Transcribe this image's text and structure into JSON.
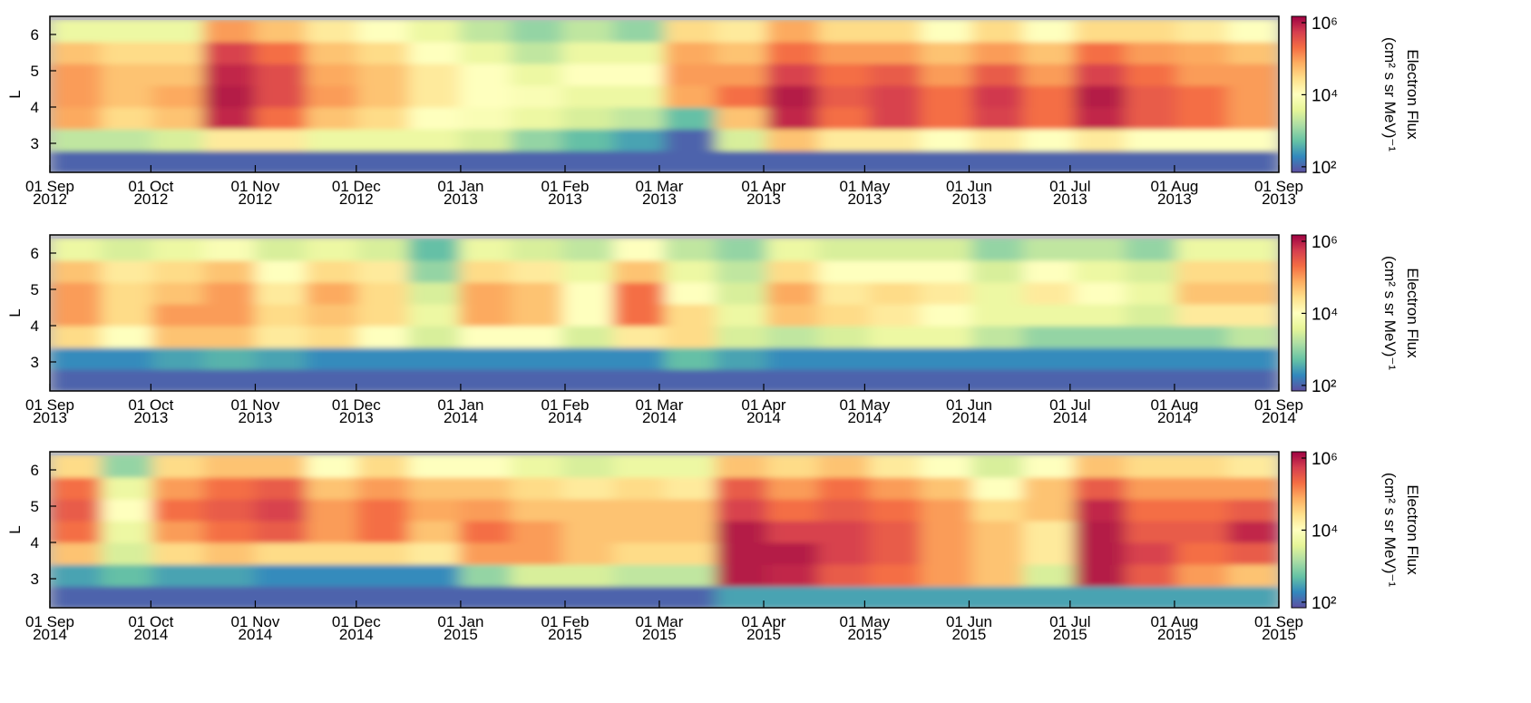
{
  "chart_data": [
    {
      "type": "heatmap",
      "ylabel": "L",
      "ylim": [
        2.2,
        6.5
      ],
      "yticks": [
        3,
        4,
        5,
        6
      ],
      "y_edges": [
        2.2,
        2.8,
        3.4,
        4.0,
        4.6,
        5.2,
        5.8,
        6.4
      ],
      "xlim": [
        "2012-09-01",
        "2013-09-01"
      ],
      "xticks": [
        {
          "value": "2012-09-01",
          "label": [
            "01 Sep",
            "2012"
          ]
        },
        {
          "value": "2012-10-01",
          "label": [
            "01 Oct",
            "2012"
          ]
        },
        {
          "value": "2012-11-01",
          "label": [
            "01 Nov",
            "2012"
          ]
        },
        {
          "value": "2012-12-01",
          "label": [
            "01 Dec",
            "2012"
          ]
        },
        {
          "value": "2013-01-01",
          "label": [
            "01 Jan",
            "2013"
          ]
        },
        {
          "value": "2013-02-01",
          "label": [
            "01 Feb",
            "2013"
          ]
        },
        {
          "value": "2013-03-01",
          "label": [
            "01 Mar",
            "2013"
          ]
        },
        {
          "value": "2013-04-01",
          "label": [
            "01 Apr",
            "2013"
          ]
        },
        {
          "value": "2013-05-01",
          "label": [
            "01 May",
            "2013"
          ]
        },
        {
          "value": "2013-06-01",
          "label": [
            "01 Jun",
            "2013"
          ]
        },
        {
          "value": "2013-07-01",
          "label": [
            "01 Jul",
            "2013"
          ]
        },
        {
          "value": "2013-08-01",
          "label": [
            "01 Aug",
            "2013"
          ]
        },
        {
          "value": "2013-09-01",
          "label": [
            "01 Sep",
            "2013"
          ]
        }
      ],
      "values": [
        [
          100.0,
          100.0,
          100.0,
          100.0,
          100.0,
          100.0,
          100.0,
          100.0,
          100.0,
          100.0,
          100.0,
          100.0,
          100.0,
          100.0,
          100.0,
          100.0,
          100.0,
          100.0,
          100.0,
          100.0,
          100.0,
          100.0,
          100.0,
          100.0
        ],
        [
          2000.0,
          2000.0,
          3000.0,
          20000.0,
          20000.0,
          5000.0,
          5000.0,
          5000.0,
          3000.0,
          1000.0,
          500.0,
          300.0,
          100.0,
          3000.0,
          50000.0,
          20000.0,
          20000.0,
          10000.0,
          20000.0,
          10000.0,
          20000.0,
          10000.0,
          10000.0,
          10000.0
        ],
        [
          80000.0,
          30000.0,
          50000.0,
          800000.0,
          200000.0,
          50000.0,
          30000.0,
          10000.0,
          8000.0,
          5000.0,
          3000.0,
          2000.0,
          500.0,
          50000.0,
          800000.0,
          200000.0,
          500000.0,
          200000.0,
          500000.0,
          200000.0,
          800000.0,
          300000.0,
          200000.0,
          100000.0
        ],
        [
          100000.0,
          50000.0,
          80000.0,
          1000000.0,
          400000.0,
          100000.0,
          50000.0,
          20000.0,
          10000.0,
          8000.0,
          5000.0,
          5000.0,
          80000.0,
          200000.0,
          1000000.0,
          300000.0,
          500000.0,
          200000.0,
          600000.0,
          200000.0,
          1000000.0,
          300000.0,
          200000.0,
          100000.0
        ],
        [
          100000.0,
          50000.0,
          50000.0,
          800000.0,
          400000.0,
          80000.0,
          50000.0,
          20000.0,
          10000.0,
          5000.0,
          10000.0,
          10000.0,
          100000.0,
          100000.0,
          500000.0,
          200000.0,
          300000.0,
          100000.0,
          300000.0,
          100000.0,
          500000.0,
          200000.0,
          100000.0,
          100000.0
        ],
        [
          50000.0,
          30000.0,
          30000.0,
          500000.0,
          200000.0,
          50000.0,
          30000.0,
          10000.0,
          5000.0,
          2000.0,
          5000.0,
          5000.0,
          80000.0,
          50000.0,
          200000.0,
          100000.0,
          100000.0,
          50000.0,
          100000.0,
          50000.0,
          200000.0,
          100000.0,
          80000.0,
          50000.0
        ],
        [
          5000.0,
          5000.0,
          5000.0,
          100000.0,
          50000.0,
          20000.0,
          10000.0,
          5000.0,
          2000.0,
          1000.0,
          2000.0,
          1000.0,
          30000.0,
          20000.0,
          80000.0,
          30000.0,
          30000.0,
          10000.0,
          30000.0,
          10000.0,
          30000.0,
          30000.0,
          20000.0,
          10000.0
        ]
      ],
      "colorbar": {
        "label": [
          "Electron Flux",
          "(cm² s sr MeV)⁻¹"
        ],
        "lim": [
          70,
          1500000
        ],
        "ticks": [
          {
            "value": 100,
            "label": "10²"
          },
          {
            "value": 10000,
            "label": "10⁴"
          },
          {
            "value": 1000000,
            "label": "10⁶"
          }
        ]
      },
      "colormap": [
        "#5e4fa2",
        "#3288bd",
        "#66c2a5",
        "#abdda4",
        "#e6f598",
        "#ffffbf",
        "#fee08b",
        "#fdae61",
        "#f46d43",
        "#d53e4f",
        "#9e0142"
      ]
    },
    {
      "type": "heatmap",
      "ylabel": "L",
      "ylim": [
        2.2,
        6.5
      ],
      "yticks": [
        3,
        4,
        5,
        6
      ],
      "y_edges": [
        2.2,
        2.8,
        3.4,
        4.0,
        4.6,
        5.2,
        5.8,
        6.4
      ],
      "xlim": [
        "2013-09-01",
        "2014-09-01"
      ],
      "xticks": [
        {
          "value": "2013-09-01",
          "label": [
            "01 Sep",
            "2013"
          ]
        },
        {
          "value": "2013-10-01",
          "label": [
            "01 Oct",
            "2013"
          ]
        },
        {
          "value": "2013-11-01",
          "label": [
            "01 Nov",
            "2013"
          ]
        },
        {
          "value": "2013-12-01",
          "label": [
            "01 Dec",
            "2013"
          ]
        },
        {
          "value": "2014-01-01",
          "label": [
            "01 Jan",
            "2014"
          ]
        },
        {
          "value": "2014-02-01",
          "label": [
            "01 Feb",
            "2014"
          ]
        },
        {
          "value": "2014-03-01",
          "label": [
            "01 Mar",
            "2014"
          ]
        },
        {
          "value": "2014-04-01",
          "label": [
            "01 Apr",
            "2014"
          ]
        },
        {
          "value": "2014-05-01",
          "label": [
            "01 May",
            "2014"
          ]
        },
        {
          "value": "2014-06-01",
          "label": [
            "01 Jun",
            "2014"
          ]
        },
        {
          "value": "2014-07-01",
          "label": [
            "01 Jul",
            "2014"
          ]
        },
        {
          "value": "2014-08-01",
          "label": [
            "01 Aug",
            "2014"
          ]
        },
        {
          "value": "2014-09-01",
          "label": [
            "01 Sep",
            "2014"
          ]
        }
      ],
      "values": [
        [
          100.0,
          100.0,
          100.0,
          100.0,
          100.0,
          100.0,
          100.0,
          100.0,
          100.0,
          100.0,
          100.0,
          100.0,
          100.0,
          100.0,
          100.0,
          100.0,
          100.0,
          100.0,
          100.0,
          100.0,
          100.0,
          100.0,
          100.0,
          100.0
        ],
        [
          200.0,
          200.0,
          300.0,
          400.0,
          300.0,
          200.0,
          200.0,
          200.0,
          200.0,
          200.0,
          200.0,
          200.0,
          500.0,
          300.0,
          200.0,
          200.0,
          200.0,
          200.0,
          200.0,
          200.0,
          200.0,
          200.0,
          200.0,
          200.0
        ],
        [
          30000.0,
          10000.0,
          50000.0,
          50000.0,
          20000.0,
          30000.0,
          10000.0,
          3000.0,
          10000.0,
          10000.0,
          3000.0,
          20000.0,
          30000.0,
          3000.0,
          2000.0,
          3000.0,
          5000.0,
          5000.0,
          2000.0,
          1000.0,
          1000.0,
          1000.0,
          1000.0,
          2000.0
        ],
        [
          100000.0,
          30000.0,
          100000.0,
          100000.0,
          30000.0,
          50000.0,
          30000.0,
          5000.0,
          80000.0,
          50000.0,
          10000.0,
          200000.0,
          30000.0,
          5000.0,
          50000.0,
          30000.0,
          20000.0,
          10000.0,
          5000.0,
          5000.0,
          5000.0,
          3000.0,
          20000.0,
          20000.0
        ],
        [
          100000.0,
          30000.0,
          50000.0,
          100000.0,
          20000.0,
          80000.0,
          30000.0,
          3000.0,
          80000.0,
          50000.0,
          10000.0,
          200000.0,
          10000.0,
          3000.0,
          80000.0,
          20000.0,
          30000.0,
          20000.0,
          5000.0,
          20000.0,
          10000.0,
          5000.0,
          50000.0,
          50000.0
        ],
        [
          50000.0,
          20000.0,
          30000.0,
          50000.0,
          10000.0,
          30000.0,
          20000.0,
          1000.0,
          30000.0,
          20000.0,
          5000.0,
          50000.0,
          5000.0,
          2000.0,
          30000.0,
          10000.0,
          10000.0,
          10000.0,
          3000.0,
          10000.0,
          5000.0,
          3000.0,
          30000.0,
          30000.0
        ],
        [
          5000.0,
          3000.0,
          5000.0,
          8000.0,
          3000.0,
          5000.0,
          3000.0,
          500.0,
          5000.0,
          3000.0,
          2000.0,
          10000.0,
          2000.0,
          1000.0,
          5000.0,
          3000.0,
          3000.0,
          3000.0,
          1000.0,
          2000.0,
          2000.0,
          1000.0,
          5000.0,
          5000.0
        ]
      ],
      "colorbar": {
        "label": [
          "Electron Flux",
          "(cm² s sr MeV)⁻¹"
        ],
        "lim": [
          70,
          1500000
        ],
        "ticks": [
          {
            "value": 100,
            "label": "10²"
          },
          {
            "value": 10000,
            "label": "10⁴"
          },
          {
            "value": 1000000,
            "label": "10⁶"
          }
        ]
      },
      "colormap": [
        "#5e4fa2",
        "#3288bd",
        "#66c2a5",
        "#abdda4",
        "#e6f598",
        "#ffffbf",
        "#fee08b",
        "#fdae61",
        "#f46d43",
        "#d53e4f",
        "#9e0142"
      ]
    },
    {
      "type": "heatmap",
      "ylabel": "L",
      "ylim": [
        2.2,
        6.5
      ],
      "yticks": [
        3,
        4,
        5,
        6
      ],
      "y_edges": [
        2.2,
        2.8,
        3.4,
        4.0,
        4.6,
        5.2,
        5.8,
        6.4
      ],
      "xlim": [
        "2014-09-01",
        "2015-09-01"
      ],
      "xticks": [
        {
          "value": "2014-09-01",
          "label": [
            "01 Sep",
            "2014"
          ]
        },
        {
          "value": "2014-10-01",
          "label": [
            "01 Oct",
            "2014"
          ]
        },
        {
          "value": "2014-11-01",
          "label": [
            "01 Nov",
            "2014"
          ]
        },
        {
          "value": "2014-12-01",
          "label": [
            "01 Dec",
            "2014"
          ]
        },
        {
          "value": "2015-01-01",
          "label": [
            "01 Jan",
            "2015"
          ]
        },
        {
          "value": "2015-02-01",
          "label": [
            "01 Feb",
            "2015"
          ]
        },
        {
          "value": "2015-03-01",
          "label": [
            "01 Mar",
            "2015"
          ]
        },
        {
          "value": "2015-04-01",
          "label": [
            "01 Apr",
            "2015"
          ]
        },
        {
          "value": "2015-05-01",
          "label": [
            "01 May",
            "2015"
          ]
        },
        {
          "value": "2015-06-01",
          "label": [
            "01 Jun",
            "2015"
          ]
        },
        {
          "value": "2015-07-01",
          "label": [
            "01 Jul",
            "2015"
          ]
        },
        {
          "value": "2015-08-01",
          "label": [
            "01 Aug",
            "2015"
          ]
        },
        {
          "value": "2015-09-01",
          "label": [
            "01 Sep",
            "2015"
          ]
        }
      ],
      "values": [
        [
          100.0,
          100.0,
          100.0,
          100.0,
          100.0,
          100.0,
          100.0,
          100.0,
          100.0,
          100.0,
          100.0,
          100.0,
          100.0,
          300.0,
          300.0,
          300.0,
          300.0,
          300.0,
          300.0,
          300.0,
          300.0,
          300.0,
          300.0,
          300.0
        ],
        [
          300.0,
          500.0,
          300.0,
          300.0,
          200.0,
          200.0,
          200.0,
          200.0,
          1000.0,
          3000.0,
          3000.0,
          2000.0,
          2000.0,
          1000000.0,
          800000.0,
          300000.0,
          200000.0,
          100000.0,
          50000.0,
          3000.0,
          1000000.0,
          300000.0,
          100000.0,
          50000.0
        ],
        [
          50000.0,
          3000.0,
          30000.0,
          50000.0,
          30000.0,
          30000.0,
          30000.0,
          20000.0,
          100000.0,
          100000.0,
          50000.0,
          30000.0,
          30000.0,
          1000000.0,
          1000000.0,
          500000.0,
          300000.0,
          100000.0,
          50000.0,
          20000.0,
          1000000.0,
          500000.0,
          200000.0,
          300000.0
        ],
        [
          200000.0,
          5000.0,
          100000.0,
          200000.0,
          300000.0,
          100000.0,
          200000.0,
          50000.0,
          200000.0,
          100000.0,
          50000.0,
          50000.0,
          50000.0,
          1000000.0,
          500000.0,
          500000.0,
          300000.0,
          100000.0,
          50000.0,
          20000.0,
          1000000.0,
          300000.0,
          300000.0,
          800000.0
        ],
        [
          300000.0,
          10000.0,
          200000.0,
          300000.0,
          500000.0,
          100000.0,
          200000.0,
          80000.0,
          100000.0,
          50000.0,
          50000.0,
          50000.0,
          50000.0,
          500000.0,
          200000.0,
          300000.0,
          200000.0,
          100000.0,
          30000.0,
          50000.0,
          800000.0,
          200000.0,
          200000.0,
          300000.0
        ],
        [
          200000.0,
          5000.0,
          100000.0,
          200000.0,
          300000.0,
          50000.0,
          100000.0,
          50000.0,
          50000.0,
          30000.0,
          20000.0,
          30000.0,
          20000.0,
          300000.0,
          100000.0,
          200000.0,
          100000.0,
          50000.0,
          10000.0,
          50000.0,
          300000.0,
          100000.0,
          100000.0,
          100000.0
        ],
        [
          30000.0,
          1000.0,
          30000.0,
          50000.0,
          50000.0,
          10000.0,
          30000.0,
          10000.0,
          10000.0,
          5000.0,
          3000.0,
          5000.0,
          5000.0,
          50000.0,
          30000.0,
          50000.0,
          20000.0,
          10000.0,
          3000.0,
          10000.0,
          50000.0,
          30000.0,
          30000.0,
          20000.0
        ]
      ],
      "colorbar": {
        "label": [
          "Electron Flux",
          "(cm² s sr MeV)⁻¹"
        ],
        "lim": [
          70,
          1500000
        ],
        "ticks": [
          {
            "value": 100,
            "label": "10²"
          },
          {
            "value": 10000,
            "label": "10⁴"
          },
          {
            "value": 1000000,
            "label": "10⁶"
          }
        ]
      },
      "colormap": [
        "#5e4fa2",
        "#3288bd",
        "#66c2a5",
        "#abdda4",
        "#e6f598",
        "#ffffbf",
        "#fee08b",
        "#fdae61",
        "#f46d43",
        "#d53e4f",
        "#9e0142"
      ]
    }
  ]
}
